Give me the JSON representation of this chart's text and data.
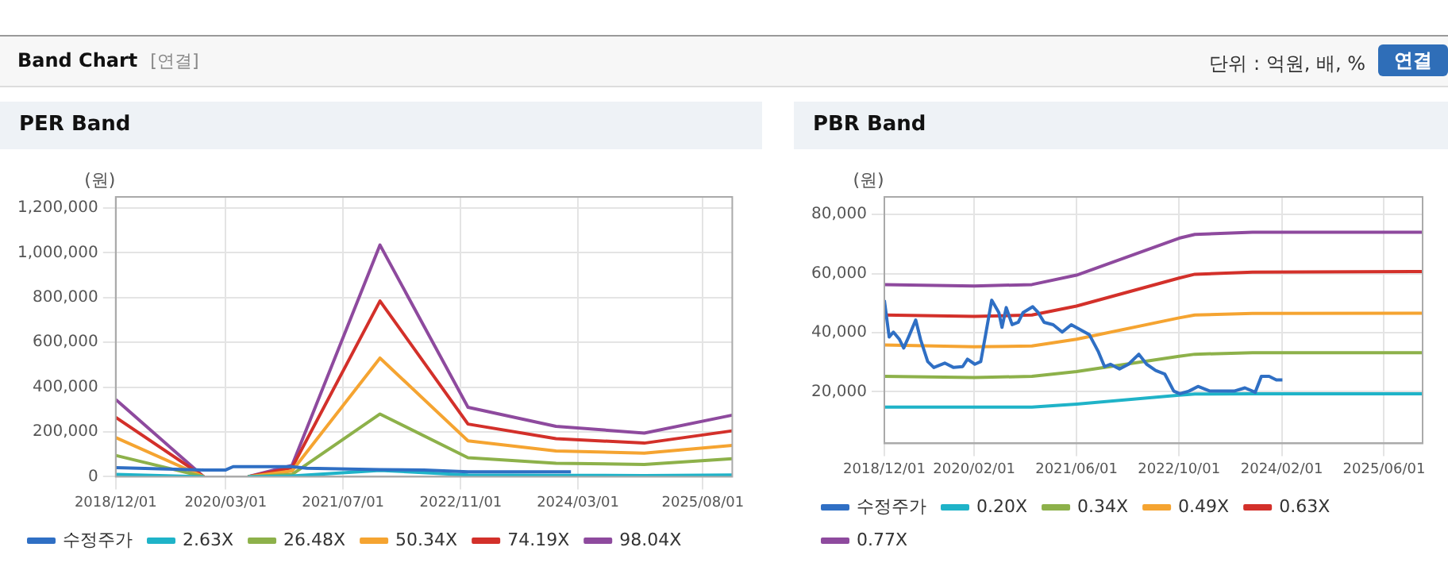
{
  "chart_data": [
    {
      "type": "line",
      "title": "PER Band",
      "ylabel": "(원)",
      "annotations": [
        "Band Chart",
        "[연결]",
        "단위 : 억원, 배, %",
        "연결"
      ],
      "xlim": [
        "2018-12-01",
        "2025-12-01"
      ],
      "xticks": [
        {
          "value": "2018-12-01",
          "label": "2018/12/01"
        },
        {
          "value": "2020-03-01",
          "label": "2020/03/01"
        },
        {
          "value": "2021-07-01",
          "label": "2021/07/01"
        },
        {
          "value": "2022-11-01",
          "label": "2022/11/01"
        },
        {
          "value": "2024-03-01",
          "label": "2024/03/01"
        },
        {
          "value": "2025-08-01",
          "label": "2025/08/01"
        }
      ],
      "ylim": [
        0,
        1250000
      ],
      "yticks": [
        0,
        {
          "value": 200000,
          "label": "200,000"
        },
        {
          "value": 400000,
          "label": "400,000"
        },
        {
          "value": 600000,
          "label": "600,000"
        },
        {
          "value": 800000,
          "label": "800,000"
        },
        {
          "value": 1000000,
          "label": "1,000,000"
        },
        {
          "value": 1200000,
          "label": "1,200,000"
        }
      ],
      "grid": true,
      "legend": "bottom",
      "marker": "none",
      "line_style": "solid",
      "x": [
        "2018-12-01",
        "2019-12-01",
        "2020-03-01",
        "2020-06-01",
        "2020-12-01",
        "2021-12-01",
        "2022-12-01",
        "2023-12-01",
        "2024-12-01",
        "2025-12-01"
      ],
      "series": [
        {
          "name": "수정주가",
          "color": "#2f6fc4",
          "x": [
            "2018-12-01",
            "2019-12-01",
            "2020-03-01",
            "2020-04-01",
            "2020-12-01",
            "2021-02-01",
            "2021-12-01",
            "2022-06-01",
            "2022-12-01",
            "2024-02-01"
          ],
          "values": [
            40000,
            30000,
            30000,
            45000,
            45000,
            38000,
            32000,
            30000,
            22000,
            22000
          ]
        },
        {
          "name": "2.63X",
          "color": "#1fb3c8",
          "values": [
            10000,
            0,
            null,
            0,
            3000,
            28000,
            8000,
            6000,
            5000,
            8000
          ]
        },
        {
          "name": "26.48X",
          "color": "#8db14a",
          "values": [
            95000,
            0,
            null,
            0,
            10000,
            280000,
            85000,
            60000,
            55000,
            80000
          ]
        },
        {
          "name": "50.34X",
          "color": "#f5a431",
          "values": [
            175000,
            0,
            null,
            0,
            25000,
            530000,
            160000,
            115000,
            105000,
            140000
          ]
        },
        {
          "name": "74.19X",
          "color": "#d3302a",
          "values": [
            265000,
            0,
            null,
            0,
            40000,
            785000,
            235000,
            170000,
            150000,
            205000
          ]
        },
        {
          "name": "98.04X",
          "color": "#8e4a9e",
          "values": [
            345000,
            0,
            null,
            0,
            50000,
            1035000,
            310000,
            225000,
            195000,
            275000
          ]
        }
      ]
    },
    {
      "type": "line",
      "title": "PBR Band",
      "ylabel": "(원)",
      "xlim": [
        "2018-12-01",
        "2025-12-01"
      ],
      "xticks": [
        {
          "value": "2018-12-01",
          "label": "2018/12/01"
        },
        {
          "value": "2020-02-01",
          "label": "2020/02/01"
        },
        {
          "value": "2021-06-01",
          "label": "2021/06/01"
        },
        {
          "value": "2022-10-01",
          "label": "2022/10/01"
        },
        {
          "value": "2024-02-01",
          "label": "2024/02/01"
        },
        {
          "value": "2025-06-01",
          "label": "2025/06/01"
        }
      ],
      "ylim": [
        2500,
        86000
      ],
      "yticks": [
        {
          "value": 20000,
          "label": "20,000"
        },
        {
          "value": 40000,
          "label": "40,000"
        },
        {
          "value": 60000,
          "label": "60,000"
        },
        {
          "value": 80000,
          "label": "80,000"
        }
      ],
      "grid": true,
      "legend": "bottom",
      "marker": "none",
      "line_style": "solid",
      "x": [
        "2018-12-01",
        "2020-02-01",
        "2020-11-01",
        "2021-06-01",
        "2022-10-01",
        "2022-12-15",
        "2023-09-15",
        "2025-12-01"
      ],
      "series": [
        {
          "name": "수정주가",
          "color": "#2f6fc4",
          "x": [
            "2018-12-01",
            "2018-12-24",
            "2019-01-13",
            "2019-02-11",
            "2019-03-03",
            "2019-03-26",
            "2019-04-29",
            "2019-05-22",
            "2019-06-25",
            "2019-07-24",
            "2019-09-14",
            "2019-10-26",
            "2019-12-08",
            "2019-12-31",
            "2020-02-04",
            "2020-03-03",
            "2020-03-26",
            "2020-04-24",
            "2020-05-28",
            "2020-06-12",
            "2020-07-02",
            "2020-07-30",
            "2020-08-28",
            "2020-09-20",
            "2020-11-05",
            "2020-12-01",
            "2020-12-29",
            "2021-02-10",
            "2021-03-25",
            "2021-05-07",
            "2021-06-19",
            "2021-08-01",
            "2021-09-13",
            "2021-10-12",
            "2021-11-09",
            "2021-12-22",
            "2022-02-03",
            "2022-03-24",
            "2022-04-30",
            "2022-06-12",
            "2022-07-25",
            "2022-09-06",
            "2022-10-05",
            "2022-11-17",
            "2022-12-30",
            "2023-02-25",
            "2023-06-20",
            "2023-08-10",
            "2023-09-28",
            "2023-10-27",
            "2023-12-03",
            "2024-01-06",
            "2024-02-04"
          ],
          "values": [
            51000,
            38500,
            40200,
            37700,
            34800,
            38500,
            44300,
            37700,
            30200,
            28200,
            29700,
            28200,
            28500,
            31000,
            29300,
            30200,
            39300,
            51000,
            46800,
            41800,
            48500,
            42700,
            43500,
            46800,
            48800,
            46800,
            43500,
            42700,
            40200,
            42700,
            41000,
            39300,
            33500,
            28500,
            29300,
            27700,
            29300,
            32700,
            29300,
            27200,
            26000,
            20200,
            19300,
            20200,
            21800,
            20200,
            20200,
            21300,
            19800,
            25200,
            25200,
            24000,
            24000
          ]
        },
        {
          "name": "0.20X",
          "color": "#1fb3c8",
          "values": [
            14800,
            14800,
            14800,
            15800,
            18800,
            19200,
            19300,
            19300
          ]
        },
        {
          "name": "0.34X",
          "color": "#8db14a",
          "values": [
            25200,
            24800,
            25200,
            26800,
            32000,
            32700,
            33200,
            33200
          ]
        },
        {
          "name": "0.49X",
          "color": "#f5a431",
          "values": [
            35800,
            35200,
            35500,
            37800,
            45000,
            46000,
            46500,
            46600
          ]
        },
        {
          "name": "0.63X",
          "color": "#d3302a",
          "values": [
            46000,
            45500,
            46000,
            49000,
            58500,
            59800,
            60500,
            60700
          ]
        },
        {
          "name": "0.77X",
          "color": "#8e4a9e",
          "values": [
            56300,
            55800,
            56300,
            59500,
            72000,
            73300,
            74000,
            74000
          ]
        }
      ]
    }
  ]
}
